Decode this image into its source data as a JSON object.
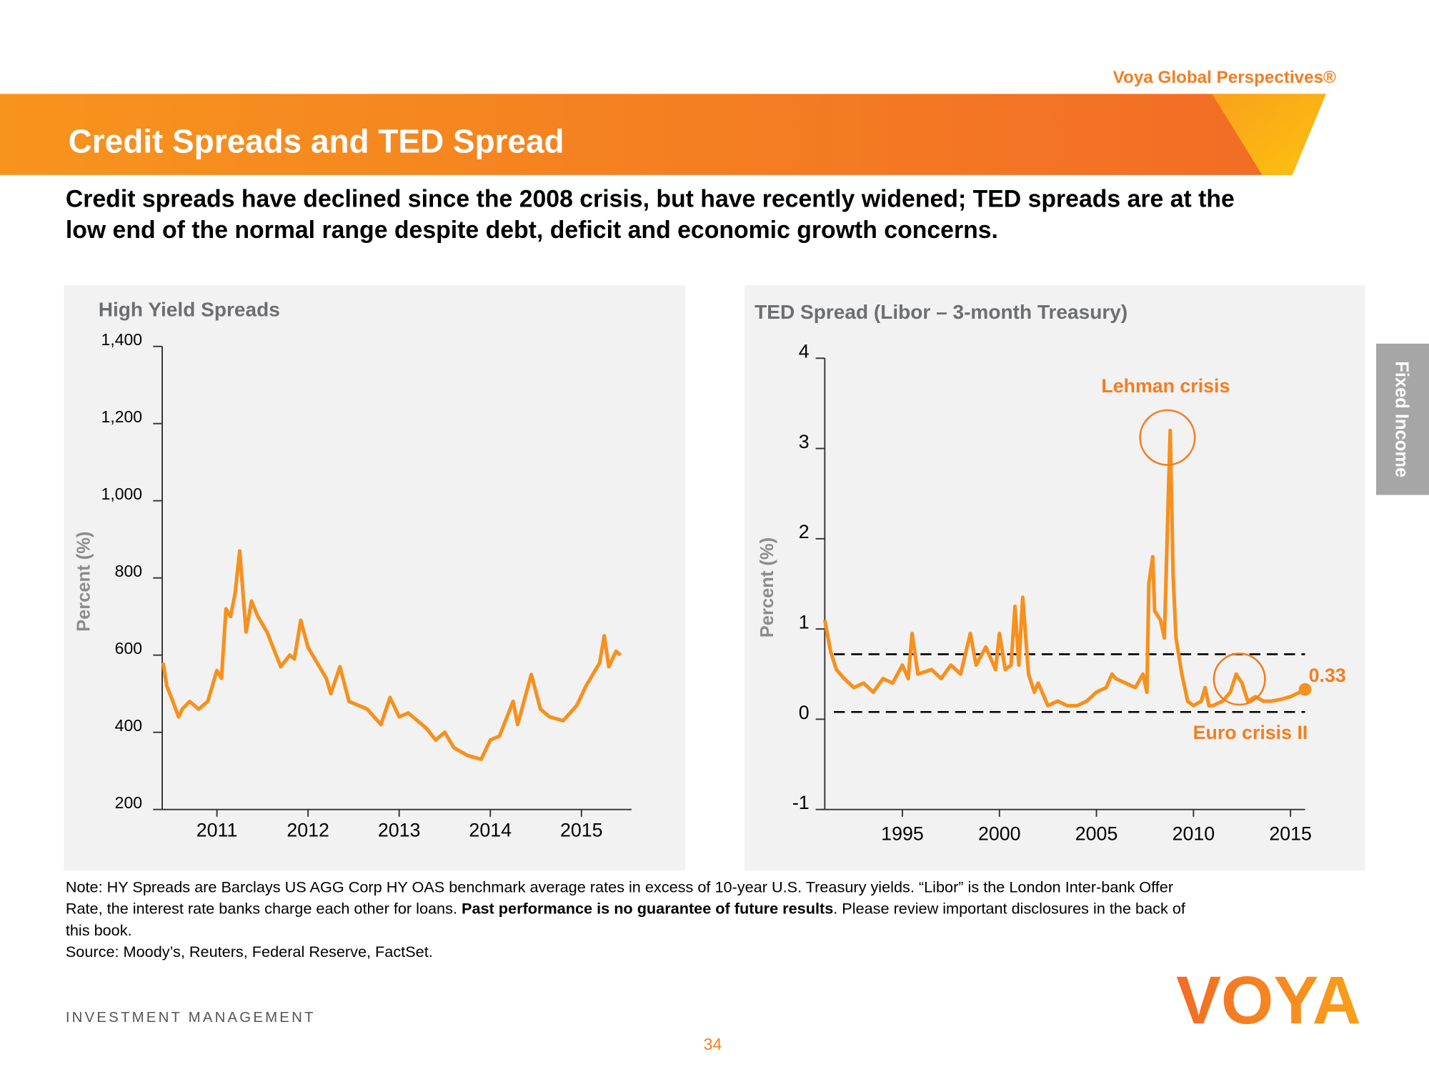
{
  "header": {
    "brand": "Voya Global Perspectives®",
    "title": "Credit Spreads and TED Spread",
    "subtitle_lines": [
      "Credit spreads have declined since the 2008 crisis, but have recently widened; TED spreads are at the",
      "low end of the normal range despite debt, deficit and economic growth concerns."
    ]
  },
  "side_tab": "Fixed Income",
  "chart_data": [
    {
      "type": "line",
      "title": "High Yield Spreads",
      "y_label": "Percent (%)",
      "x": [
        2010.91,
        2010.95,
        2011.0,
        2011.08,
        2011.12,
        2011.2,
        2011.3,
        2011.4,
        2011.45,
        2011.5,
        2011.55,
        2011.6,
        2011.65,
        2011.7,
        2011.75,
        2011.78,
        2011.82,
        2011.88,
        2011.95,
        2012.05,
        2012.15,
        2012.2,
        2012.3,
        2012.35,
        2012.42,
        2012.5,
        2012.6,
        2012.7,
        2012.75,
        2012.85,
        2012.95,
        2013.05,
        2013.15,
        2013.3,
        2013.4,
        2013.5,
        2013.6,
        2013.7,
        2013.8,
        2013.9,
        2014.0,
        2014.1,
        2014.25,
        2014.4,
        2014.5,
        2014.6,
        2014.75,
        2014.8,
        2014.95,
        2015.05,
        2015.15,
        2015.3,
        2015.45,
        2015.55,
        2015.7,
        2015.75,
        2015.8,
        2015.88,
        2015.93
      ],
      "series": [
        {
          "color": "#f7901e",
          "values": [
            580,
            520,
            490,
            440,
            460,
            480,
            460,
            480,
            520,
            560,
            540,
            720,
            700,
            760,
            870,
            780,
            660,
            740,
            700,
            660,
            600,
            570,
            600,
            590,
            690,
            620,
            580,
            540,
            500,
            570,
            480,
            470,
            460,
            420,
            490,
            440,
            450,
            430,
            410,
            380,
            400,
            360,
            340,
            330,
            380,
            390,
            480,
            420,
            550,
            460,
            440,
            430,
            470,
            520,
            580,
            650,
            570,
            610,
            600
          ]
        }
      ],
      "xlim": [
        2010.9,
        2016.05
      ],
      "xticks": [
        {
          "value": 2011.5,
          "label": "2011"
        },
        {
          "value": 2012.5,
          "label": "2012"
        },
        {
          "value": 2013.5,
          "label": "2013"
        },
        {
          "value": 2014.5,
          "label": "2014"
        },
        {
          "value": 2015.5,
          "label": "2015"
        }
      ],
      "ylim": [
        200,
        1400
      ],
      "yticks": [
        200,
        400,
        600,
        800,
        {
          "value": 1000,
          "label": "1,000"
        },
        {
          "value": 1200,
          "label": "1,200"
        },
        {
          "value": 1400,
          "label": "1,400"
        }
      ]
    },
    {
      "type": "line",
      "title": "TED Spread (Libor – 3-month Treasury)",
      "y_label": "Percent (%)",
      "x": [
        1991.0,
        1991.3,
        1991.6,
        1992.0,
        1992.5,
        1993.0,
        1993.5,
        1994.0,
        1994.5,
        1995.0,
        1995.3,
        1995.5,
        1995.8,
        1996.5,
        1997.0,
        1997.5,
        1998.0,
        1998.5,
        1998.8,
        1999.3,
        1999.8,
        2000.0,
        2000.3,
        2000.6,
        2000.8,
        2001.0,
        2001.2,
        2001.5,
        2001.8,
        2002.0,
        2002.5,
        2003.0,
        2003.5,
        2004.0,
        2004.5,
        2005.0,
        2005.5,
        2005.8,
        2006.0,
        2006.5,
        2007.0,
        2007.4,
        2007.6,
        2007.7,
        2007.9,
        2008.0,
        2008.3,
        2008.5,
        2008.8,
        2008.95,
        2009.1,
        2009.4,
        2009.7,
        2010.0,
        2010.4,
        2010.6,
        2010.8,
        2011.0,
        2011.5,
        2011.9,
        2012.2,
        2012.5,
        2012.8,
        2013.2,
        2013.6,
        2014.0,
        2014.5,
        2015.0,
        2015.5,
        2015.75
      ],
      "series": [
        {
          "color": "#f7901e",
          "values": [
            1.1,
            0.75,
            0.55,
            0.45,
            0.35,
            0.4,
            0.3,
            0.45,
            0.4,
            0.6,
            0.45,
            0.95,
            0.5,
            0.55,
            0.45,
            0.6,
            0.5,
            0.95,
            0.6,
            0.8,
            0.55,
            0.95,
            0.55,
            0.6,
            1.25,
            0.6,
            1.35,
            0.5,
            0.3,
            0.4,
            0.15,
            0.2,
            0.15,
            0.15,
            0.2,
            0.3,
            0.35,
            0.5,
            0.45,
            0.4,
            0.35,
            0.5,
            0.3,
            1.5,
            1.8,
            1.2,
            1.1,
            0.9,
            3.2,
            1.6,
            0.9,
            0.5,
            0.2,
            0.15,
            0.2,
            0.35,
            0.15,
            0.15,
            0.2,
            0.3,
            0.5,
            0.4,
            0.2,
            0.25,
            0.2,
            0.2,
            0.22,
            0.25,
            0.3,
            0.33
          ]
        }
      ],
      "reference_lines": [
        0.72,
        0.08
      ],
      "annotations": [
        "Lehman crisis",
        "Euro crisis II"
      ],
      "xlim": [
        1991,
        2015.75
      ],
      "xticks": [
        1995,
        2000,
        2005,
        2010,
        2015
      ],
      "ylim": [
        -1,
        4
      ],
      "yticks": [
        -1,
        0,
        1,
        2,
        3,
        4
      ]
    }
  ],
  "note": {
    "lines": [
      [
        {
          "text": "Note: HY Spreads are Barclays US AGG Corp HY OAS benchmark average rates in excess of 10-year U.S. Treasury yields. “Libor” is the London Inter-bank Offer"
        }
      ],
      [
        {
          "text": "Rate, the interest rate banks charge each other for loans. "
        },
        {
          "text": "Past performance is no guarantee of future results",
          "bold": true
        },
        {
          "text": ". Please review important disclosures in the back of"
        }
      ],
      [
        {
          "text": "this book."
        }
      ],
      [
        {
          "text": "Source: Moody’s, Reuters, Federal Reserve, FactSet."
        }
      ]
    ]
  },
  "footer": {
    "division": "INVESTMENT MANAGEMENT",
    "logo": "VOYA",
    "page": "34"
  }
}
